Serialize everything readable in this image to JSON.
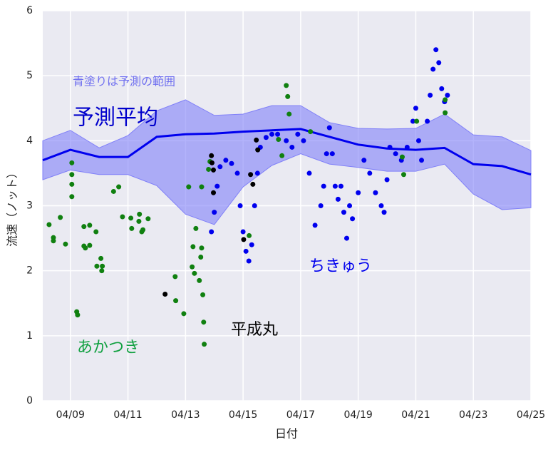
{
  "chart_data": {
    "type": "scatter",
    "xlabel": "日付",
    "ylabel": "流速（ノット）",
    "xlim": [
      8.04,
      25
    ],
    "ylim": [
      0,
      6
    ],
    "xticks": [
      {
        "value": 9,
        "label": "04/09"
      },
      {
        "value": 11,
        "label": "04/11"
      },
      {
        "value": 13,
        "label": "04/13"
      },
      {
        "value": 15,
        "label": "04/15"
      },
      {
        "value": 17,
        "label": "04/17"
      },
      {
        "value": 19,
        "label": "04/19"
      },
      {
        "value": 21,
        "label": "04/21"
      },
      {
        "value": 23,
        "label": "04/23"
      },
      {
        "value": 25,
        "label": "04/25"
      }
    ],
    "yticks": [
      0,
      1,
      2,
      3,
      4,
      5,
      6
    ],
    "grid": true,
    "series": [
      {
        "name": "青塗りは予測の範囲",
        "kind": "band",
        "color": "#8080f8",
        "x": [
          8.04,
          9,
          10,
          11,
          12,
          13,
          14,
          15,
          16,
          17,
          18,
          19,
          20,
          21,
          22,
          23,
          24,
          25
        ],
        "upper": [
          4.0,
          4.16,
          3.89,
          4.08,
          4.46,
          4.63,
          4.39,
          4.41,
          4.54,
          4.54,
          4.28,
          4.19,
          4.18,
          4.19,
          4.41,
          4.09,
          4.06,
          3.85
        ],
        "lower": [
          3.4,
          3.55,
          3.48,
          3.48,
          3.31,
          2.87,
          2.71,
          3.29,
          3.62,
          3.8,
          3.64,
          3.59,
          3.53,
          3.53,
          3.64,
          3.18,
          2.94,
          2.97
        ]
      },
      {
        "name": "予測平均",
        "kind": "line",
        "color": "#0000ee",
        "x": [
          8.04,
          9,
          10,
          11,
          12,
          13,
          14,
          15,
          17,
          19,
          20,
          21,
          22,
          23,
          24,
          25
        ],
        "values": [
          3.7,
          3.86,
          3.75,
          3.75,
          4.06,
          4.1,
          4.11,
          4.14,
          4.18,
          3.94,
          3.88,
          3.86,
          3.89,
          3.64,
          3.61,
          3.48
        ]
      },
      {
        "name": "ちきゅう",
        "kind": "points",
        "color": "#0000ee",
        "x": [
          13.9,
          14.0,
          14.1,
          14.2,
          14.4,
          14.6,
          14.8,
          14.9,
          15.0,
          15.1,
          15.2,
          15.3,
          15.4,
          15.5,
          15.6,
          15.8,
          16.0,
          16.2,
          16.5,
          16.7,
          16.9,
          17.1,
          17.3,
          17.5,
          17.7,
          17.8,
          17.9,
          18.0,
          18.1,
          18.2,
          18.3,
          18.4,
          18.5,
          18.6,
          18.7,
          18.8,
          19.0,
          19.2,
          19.4,
          19.6,
          19.8,
          19.9,
          20.0,
          20.1,
          20.3,
          20.5,
          20.7,
          20.9,
          21.0,
          21.1,
          21.2,
          21.4,
          21.5,
          21.6,
          21.7,
          21.8,
          21.9,
          22.0,
          22.1
        ],
        "values": [
          2.6,
          2.9,
          3.3,
          3.6,
          3.7,
          3.65,
          3.5,
          3.0,
          2.6,
          2.3,
          2.15,
          2.4,
          3.0,
          3.5,
          3.9,
          4.05,
          4.1,
          4.1,
          4.0,
          3.9,
          4.1,
          4.0,
          3.5,
          2.7,
          3.0,
          3.3,
          3.8,
          4.2,
          3.8,
          3.3,
          3.1,
          3.3,
          2.9,
          2.5,
          3.0,
          2.8,
          3.2,
          3.7,
          3.5,
          3.2,
          3.0,
          2.9,
          3.4,
          3.9,
          3.8,
          3.7,
          3.9,
          4.3,
          4.5,
          4.0,
          3.7,
          4.3,
          4.7,
          5.1,
          5.4,
          5.2,
          4.8,
          4.6,
          4.7
        ]
      },
      {
        "name": "あかつき",
        "kind": "points",
        "color": "#108010",
        "x": [
          8.26,
          8.41,
          8.41,
          8.65,
          8.83,
          9.05,
          9.05,
          9.05,
          9.05,
          9.22,
          9.25,
          9.47,
          9.47,
          9.52,
          9.67,
          9.67,
          9.89,
          9.92,
          10.06,
          10.09,
          10.11,
          10.5,
          10.68,
          10.81,
          11.1,
          11.13,
          11.38,
          11.4,
          11.48,
          11.52,
          11.7,
          12.64,
          12.66,
          12.94,
          13.11,
          13.23,
          13.26,
          13.31,
          13.36,
          13.48,
          13.53,
          13.56,
          13.6,
          13.63,
          13.65,
          13.56,
          13.8,
          13.85,
          15.21,
          16.23,
          16.35,
          16.5,
          16.55,
          16.6,
          17.34,
          20.53,
          20.58,
          21.03,
          22.02,
          22.02
        ],
        "values": [
          2.71,
          2.51,
          2.46,
          2.82,
          2.41,
          3.66,
          3.48,
          3.33,
          3.14,
          1.37,
          1.32,
          2.68,
          2.38,
          2.35,
          2.7,
          2.39,
          2.6,
          2.07,
          2.19,
          2.0,
          2.07,
          3.22,
          3.29,
          2.83,
          2.81,
          2.65,
          2.76,
          2.87,
          2.6,
          2.63,
          2.8,
          1.91,
          1.54,
          1.34,
          3.29,
          2.06,
          2.37,
          1.96,
          2.65,
          1.85,
          2.21,
          2.35,
          1.63,
          1.21,
          0.87,
          3.29,
          3.56,
          3.68,
          2.54,
          4.02,
          3.77,
          4.85,
          4.68,
          4.41,
          4.14,
          3.75,
          3.48,
          4.3,
          4.63,
          4.43
        ]
      },
      {
        "name": "平成丸",
        "kind": "points",
        "color": "#000000",
        "x": [
          12.29,
          13.9,
          13.92,
          13.97,
          13.97,
          15.46,
          15.51,
          15.26,
          15.34,
          15.02
        ],
        "values": [
          1.64,
          3.77,
          3.66,
          3.55,
          3.2,
          4.01,
          3.86,
          3.48,
          3.33,
          2.48
        ]
      }
    ]
  }
}
